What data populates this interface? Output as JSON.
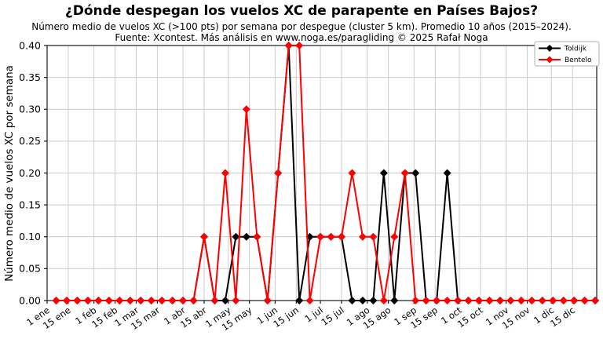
{
  "chart_data": {
    "type": "line",
    "title": "¿Dónde despegan los vuelos XC de parapente en Países Bajos?",
    "subtitle": "Número medio de vuelos XC (>100 pts) por semana por despegue (cluster 5 km). Promedio 10 años (2015–2024).",
    "source_note": "Fuente: Xcontest. Más análisis en www.noga.es/paragliding © 2025 Rafał Noga",
    "ylabel": "Número medio de vuelos XC por semana",
    "xlabel": "",
    "ylim": [
      0.0,
      0.4
    ],
    "yticks": [
      "0.00",
      "0.05",
      "0.10",
      "0.15",
      "0.20",
      "0.25",
      "0.30",
      "0.35",
      "0.40"
    ],
    "grid": true,
    "legend_position": "upper right",
    "x_unit": "week of year (52 weekly points)",
    "n_points": 52,
    "xticks": [
      {
        "label": "1 ene",
        "day": 1
      },
      {
        "label": "15 ene",
        "day": 15
      },
      {
        "label": "1 feb",
        "day": 32
      },
      {
        "label": "15 feb",
        "day": 46
      },
      {
        "label": "1 mar",
        "day": 60
      },
      {
        "label": "15 mar",
        "day": 74
      },
      {
        "label": "1 abr",
        "day": 91
      },
      {
        "label": "15 abr",
        "day": 105
      },
      {
        "label": "1 may",
        "day": 121
      },
      {
        "label": "15 may",
        "day": 135
      },
      {
        "label": "1 jun",
        "day": 152
      },
      {
        "label": "15 jun",
        "day": 166
      },
      {
        "label": "1 jul",
        "day": 182
      },
      {
        "label": "15 jul",
        "day": 196
      },
      {
        "label": "1 ago",
        "day": 213
      },
      {
        "label": "15 ago",
        "day": 227
      },
      {
        "label": "1 sep",
        "day": 244
      },
      {
        "label": "15 sep",
        "day": 258
      },
      {
        "label": "1 oct",
        "day": 274
      },
      {
        "label": "15 oct",
        "day": 288
      },
      {
        "label": "1 nov",
        "day": 305
      },
      {
        "label": "15 nov",
        "day": 319
      },
      {
        "label": "1 dic",
        "day": 335
      },
      {
        "label": "15 dic",
        "day": 349
      }
    ],
    "series": [
      {
        "name": "Toldijk",
        "color": "#000000",
        "marker": "diamond",
        "values": [
          0,
          0,
          0,
          0,
          0,
          0,
          0,
          0,
          0,
          0,
          0,
          0,
          0,
          0,
          0.1,
          0,
          0,
          0.1,
          0.1,
          0.1,
          0,
          0.2,
          0.4,
          0,
          0.1,
          0.1,
          0.1,
          0.1,
          0,
          0,
          0,
          0.2,
          0,
          0.2,
          0.2,
          0,
          0,
          0.2,
          0,
          0,
          0,
          0,
          0,
          0,
          0,
          0,
          0,
          0,
          0,
          0,
          0,
          0
        ]
      },
      {
        "name": "Bentelo",
        "color": "#ff0000",
        "marker": "diamond",
        "values": [
          0,
          0,
          0,
          0,
          0,
          0,
          0,
          0,
          0,
          0,
          0,
          0,
          0,
          0,
          0.1,
          0,
          0.2,
          0,
          0.3,
          0.1,
          0,
          0.2,
          0.4,
          0.4,
          0,
          0.1,
          0.1,
          0.1,
          0.2,
          0.1,
          0.1,
          0,
          0.1,
          0.2,
          0,
          0,
          0,
          0,
          0,
          0,
          0,
          0,
          0,
          0,
          0,
          0,
          0,
          0,
          0,
          0,
          0,
          0
        ]
      }
    ],
    "style": {
      "grid_color": "#cccccc",
      "frame_color": "#1a1a1a",
      "tick_label_color": "#000000",
      "legend_border_color": "#b0b0b0",
      "background": "#ffffff"
    }
  }
}
